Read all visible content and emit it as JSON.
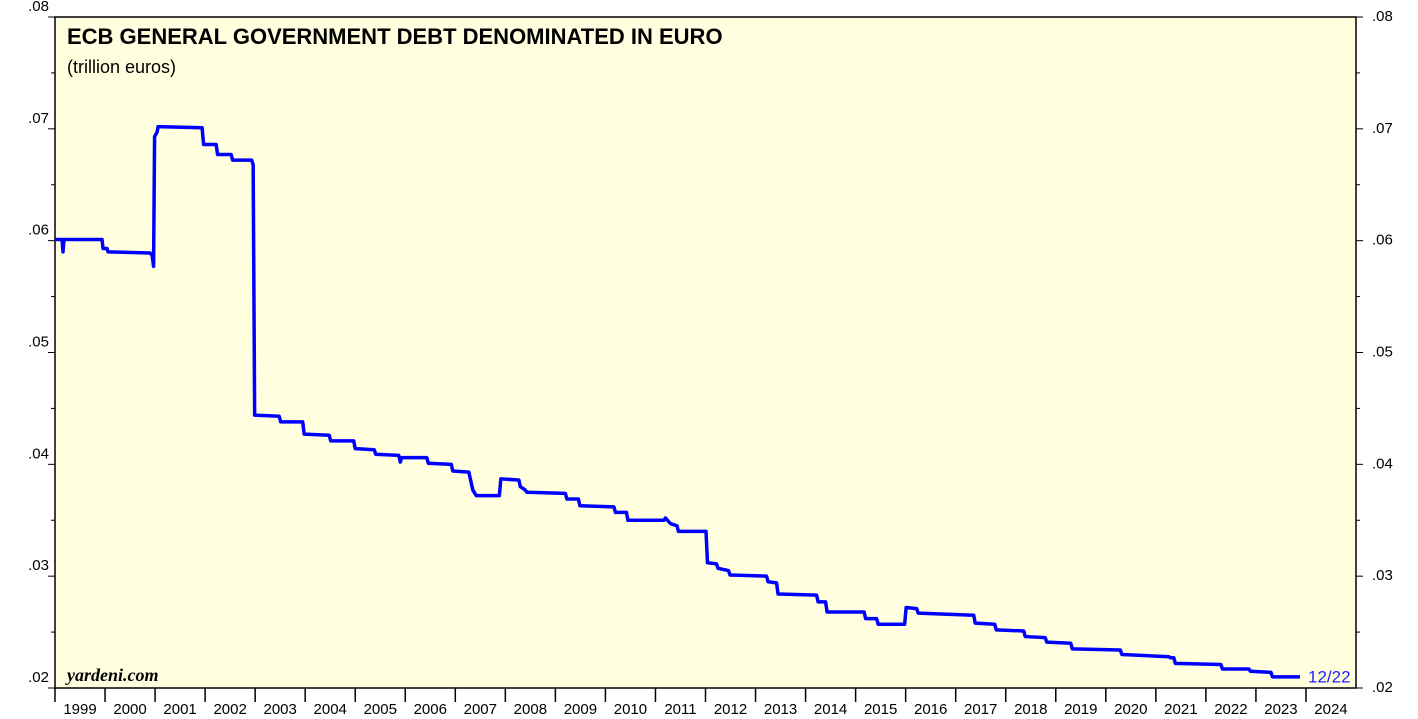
{
  "chart_data": {
    "type": "line",
    "title": "ECB GENERAL GOVERNMENT DEBT DENOMINATED IN EURO",
    "subtitle": "(trillion euros)",
    "source": "yardeni.com",
    "annotation": "12/22",
    "annotation_color": "#1f1fff",
    "background": "#ffffe0",
    "xlim": [
      1999,
      2025
    ],
    "xticks": [
      1999,
      2000,
      2001,
      2002,
      2003,
      2004,
      2005,
      2006,
      2007,
      2008,
      2009,
      2010,
      2011,
      2012,
      2013,
      2014,
      2015,
      2016,
      2017,
      2018,
      2019,
      2020,
      2021,
      2022,
      2023,
      2024
    ],
    "ylim": [
      0.02,
      0.08
    ],
    "yticks": [
      {
        "value": 0.02,
        "label": ".02"
      },
      {
        "value": 0.03,
        "label": ".03"
      },
      {
        "value": 0.04,
        "label": ".04"
      },
      {
        "value": 0.05,
        "label": ".05"
      },
      {
        "value": 0.06,
        "label": ".06"
      },
      {
        "value": 0.07,
        "label": ".07"
      },
      {
        "value": 0.08,
        "label": ".08"
      }
    ],
    "right_axis": true,
    "series": [
      {
        "name": "ECB general government debt",
        "color": "#0000ff",
        "x": [
          1999.0,
          1999.14,
          1999.16,
          1999.18,
          1999.94,
          1999.96,
          2000.04,
          2000.06,
          2000.9,
          2000.94,
          2000.97,
          2000.99,
          2001.04,
          2001.06,
          2001.94,
          2001.97,
          2002.22,
          2002.25,
          2002.52,
          2002.55,
          2002.93,
          2002.96,
          2002.99,
          2003.48,
          2003.51,
          2003.95,
          2003.98,
          2004.48,
          2004.51,
          2004.97,
          2005.0,
          2005.38,
          2005.41,
          2005.87,
          2005.9,
          2005.93,
          2006.43,
          2006.46,
          2006.92,
          2006.95,
          2007.27,
          2007.3,
          2007.35,
          2007.42,
          2007.88,
          2007.91,
          2008.27,
          2008.3,
          2008.4,
          2008.43,
          2009.2,
          2009.23,
          2009.46,
          2009.49,
          2010.17,
          2010.2,
          2010.42,
          2010.45,
          2011.17,
          2011.2,
          2011.3,
          2011.43,
          2011.46,
          2012.01,
          2012.04,
          2012.22,
          2012.25,
          2012.46,
          2012.49,
          2013.22,
          2013.25,
          2013.42,
          2013.45,
          2014.22,
          2014.25,
          2014.4,
          2014.43,
          2015.17,
          2015.2,
          2015.42,
          2015.45,
          2015.98,
          2016.01,
          2016.22,
          2016.25,
          2017.36,
          2017.39,
          2017.78,
          2017.81,
          2018.36,
          2018.39,
          2018.79,
          2018.82,
          2019.3,
          2019.33,
          2020.29,
          2020.32,
          2021.26,
          2021.29,
          2021.36,
          2021.39,
          2022.3,
          2022.33,
          2022.86,
          2022.89,
          2023.3,
          2023.33,
          2023.88
        ],
        "values": [
          0.0601,
          0.0601,
          0.059,
          0.0601,
          0.0601,
          0.0593,
          0.0593,
          0.059,
          0.0589,
          0.0587,
          0.0577,
          0.0693,
          0.0697,
          0.0702,
          0.0701,
          0.0686,
          0.0686,
          0.0677,
          0.0677,
          0.0672,
          0.0672,
          0.0668,
          0.0444,
          0.0443,
          0.0438,
          0.0438,
          0.0427,
          0.0426,
          0.0421,
          0.0421,
          0.0414,
          0.0413,
          0.0409,
          0.0408,
          0.0402,
          0.0406,
          0.0406,
          0.0401,
          0.04,
          0.0394,
          0.0393,
          0.0387,
          0.0377,
          0.0372,
          0.0372,
          0.0387,
          0.0386,
          0.038,
          0.0377,
          0.0375,
          0.0374,
          0.0369,
          0.0369,
          0.0363,
          0.0362,
          0.0357,
          0.0357,
          0.035,
          0.035,
          0.0352,
          0.0347,
          0.0345,
          0.034,
          0.034,
          0.0312,
          0.0311,
          0.0307,
          0.0305,
          0.0301,
          0.03,
          0.0295,
          0.0294,
          0.0284,
          0.0283,
          0.0277,
          0.0277,
          0.0268,
          0.0268,
          0.0262,
          0.0262,
          0.0257,
          0.0257,
          0.0272,
          0.0271,
          0.0267,
          0.0265,
          0.0258,
          0.0257,
          0.0252,
          0.0251,
          0.0246,
          0.0245,
          0.0241,
          0.024,
          0.0235,
          0.0234,
          0.023,
          0.0228,
          0.0227,
          0.0227,
          0.0222,
          0.0221,
          0.0217,
          0.0217,
          0.0215,
          0.0214,
          0.021,
          0.021
        ]
      }
    ]
  }
}
